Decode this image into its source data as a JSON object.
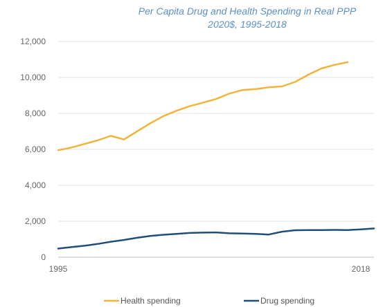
{
  "chart_data": {
    "type": "line",
    "title": "Per Capita Drug and Health Spending in Real PPP",
    "subtitle": "2020$, 1995-2018",
    "xlabel": "",
    "ylabel": "",
    "x": [
      1995,
      1996,
      1997,
      1998,
      1999,
      2000,
      2001,
      2002,
      2003,
      2004,
      2005,
      2006,
      2007,
      2008,
      2009,
      2010,
      2011,
      2012,
      2013,
      2014,
      2015,
      2016,
      2017,
      2018,
      2019
    ],
    "xlim": [
      1995,
      2019
    ],
    "x_ticks": [
      1995,
      2018
    ],
    "x_tick_labels": [
      "1995",
      "2018"
    ],
    "ylim": [
      0,
      12000
    ],
    "y_ticks": [
      0,
      2000,
      4000,
      6000,
      8000,
      10000,
      12000
    ],
    "y_tick_labels": [
      "0",
      "2,000",
      "4,000",
      "6,000",
      "8,000",
      "10,000",
      "12,000"
    ],
    "grid": "horizontal",
    "legend": "bottom",
    "series": [
      {
        "name": "Health spending",
        "color": "#f0b43c",
        "values": [
          5950,
          6100,
          6300,
          6500,
          6750,
          6550,
          7000,
          7450,
          7850,
          8150,
          8400,
          8600,
          8800,
          9100,
          9300,
          9350,
          9450,
          9500,
          9750,
          10150,
          10500,
          10700,
          10850,
          null,
          null
        ]
      },
      {
        "name": "Drug spending",
        "color": "#1f4e79",
        "values": [
          480,
          560,
          640,
          740,
          860,
          960,
          1080,
          1180,
          1250,
          1300,
          1350,
          1370,
          1380,
          1330,
          1320,
          1300,
          1260,
          1420,
          1500,
          1510,
          1510,
          1520,
          1510,
          1550,
          1600
        ]
      }
    ]
  }
}
